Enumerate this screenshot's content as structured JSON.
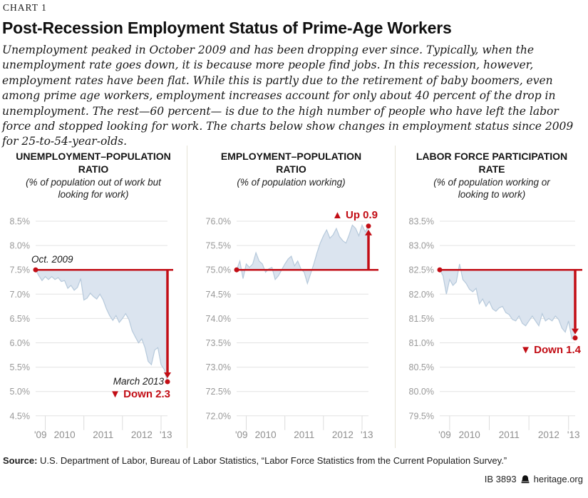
{
  "chart_label": "CHART 1",
  "title": "Post-Recession Employment Status of Prime-Age Workers",
  "intro": "Unemployment peaked in October 2009 and has been dropping ever since. Typically, when the unemployment rate goes down, it is because more people find jobs. In this recession, however, employment rates have been flat. While this is partly due to the retirement of baby boomers, even among prime age workers, employment increases account for only about 40 percent of the drop in unemployment. The rest—60 percent— is due to the high number of people who have left the labor force and stopped looking for work. The charts below show changes in employment status since 2009 for 25-to-54-year-olds.",
  "colors": {
    "red": "#c20d15",
    "area_fill": "#dbe4ef",
    "area_stroke": "#b6c9db",
    "grid": "#e3e3e3",
    "axis_text": "#999999"
  },
  "chart_data": [
    {
      "type": "area",
      "title": "UNEMPLOYMENT–POPULATION RATIO",
      "subtitle": "(% of population out of work but looking for work)",
      "x_start": "Oct 2009",
      "x_end": "Mar 2013",
      "x_unit": "month",
      "values": [
        7.5,
        7.38,
        7.28,
        7.36,
        7.3,
        7.36,
        7.3,
        7.34,
        7.26,
        7.28,
        7.12,
        7.18,
        7.08,
        7.14,
        7.32,
        6.88,
        6.92,
        7.02,
        6.95,
        6.9,
        7.0,
        6.88,
        6.7,
        6.56,
        6.46,
        6.56,
        6.42,
        6.5,
        6.6,
        6.48,
        6.25,
        6.12,
        6.0,
        6.08,
        5.9,
        5.62,
        5.55,
        5.85,
        5.9,
        5.55,
        5.45,
        5.2
      ],
      "baseline": 7.5,
      "end_value": 5.2,
      "change": -2.3,
      "ylim": [
        4.5,
        8.5
      ],
      "yticks": [
        "8.5%",
        "8.0%",
        "7.5%",
        "7.0%",
        "6.5%",
        "6.0%",
        "5.5%",
        "5.0%",
        "4.5%"
      ],
      "xticks": [
        "'09",
        "2010",
        "2011",
        "2012",
        "'13"
      ],
      "annotations": {
        "start": "Oct. 2009",
        "end": "March 2013",
        "delta": "▼ Down 2.3"
      }
    },
    {
      "type": "area",
      "title": "EMPLOYMENT–POPULATION RATIO",
      "subtitle": "(% of population working)",
      "x_start": "Oct 2009",
      "x_end": "Mar 2013",
      "x_unit": "month",
      "values": [
        75.0,
        75.18,
        74.82,
        75.12,
        75.05,
        75.12,
        75.35,
        75.18,
        75.12,
        74.95,
        75.02,
        75.05,
        74.8,
        74.88,
        75.0,
        75.12,
        75.22,
        75.28,
        75.08,
        75.18,
        75.02,
        74.95,
        74.72,
        74.92,
        75.12,
        75.35,
        75.55,
        75.7,
        75.82,
        75.65,
        75.72,
        75.85,
        75.68,
        75.6,
        75.55,
        75.72,
        75.92,
        75.85,
        75.7,
        75.92,
        75.78,
        75.9
      ],
      "baseline": 75.0,
      "end_value": 75.9,
      "change": 0.9,
      "ylim": [
        72.0,
        76.0
      ],
      "yticks": [
        "76.0%",
        "75.5%",
        "75.0%",
        "74.5%",
        "74.0%",
        "73.5%",
        "73.0%",
        "72.5%",
        "72.0%"
      ],
      "xticks": [
        "'09",
        "2010",
        "2011",
        "2012",
        "'13"
      ],
      "annotations": {
        "delta": "▲ Up 0.9"
      }
    },
    {
      "type": "area",
      "title": "LABOR FORCE PARTICIPATION RATE",
      "subtitle": "(% of population working or looking to work)",
      "x_start": "Oct 2009",
      "x_end": "Mar 2013",
      "x_unit": "month",
      "values": [
        82.5,
        82.38,
        82.0,
        82.3,
        82.18,
        82.25,
        82.62,
        82.3,
        82.22,
        82.1,
        82.05,
        82.12,
        81.8,
        81.9,
        81.75,
        81.85,
        81.7,
        81.65,
        81.72,
        81.75,
        81.62,
        81.58,
        81.48,
        81.45,
        81.55,
        81.4,
        81.35,
        81.45,
        81.55,
        81.45,
        81.35,
        81.6,
        81.45,
        81.5,
        81.45,
        81.55,
        81.48,
        81.3,
        81.22,
        81.45,
        81.08,
        81.1
      ],
      "baseline": 82.5,
      "end_value": 81.1,
      "change": -1.4,
      "ylim": [
        79.5,
        83.5
      ],
      "yticks": [
        "83.5%",
        "83.0%",
        "82.5%",
        "82.0%",
        "81.5%",
        "81.0%",
        "80.5%",
        "80.0%",
        "79.5%"
      ],
      "xticks": [
        "'09",
        "2010",
        "2011",
        "2012",
        "'13"
      ],
      "annotations": {
        "delta": "▼ Down 1.4"
      }
    }
  ],
  "footer": {
    "source_label": "Source:",
    "source_text": " U.S. Department of Labor, Bureau of Labor Statistics, “Labor Force Statistics from the Current Population Survey.”",
    "ib": "IB 3893",
    "site": "heritage.org"
  }
}
